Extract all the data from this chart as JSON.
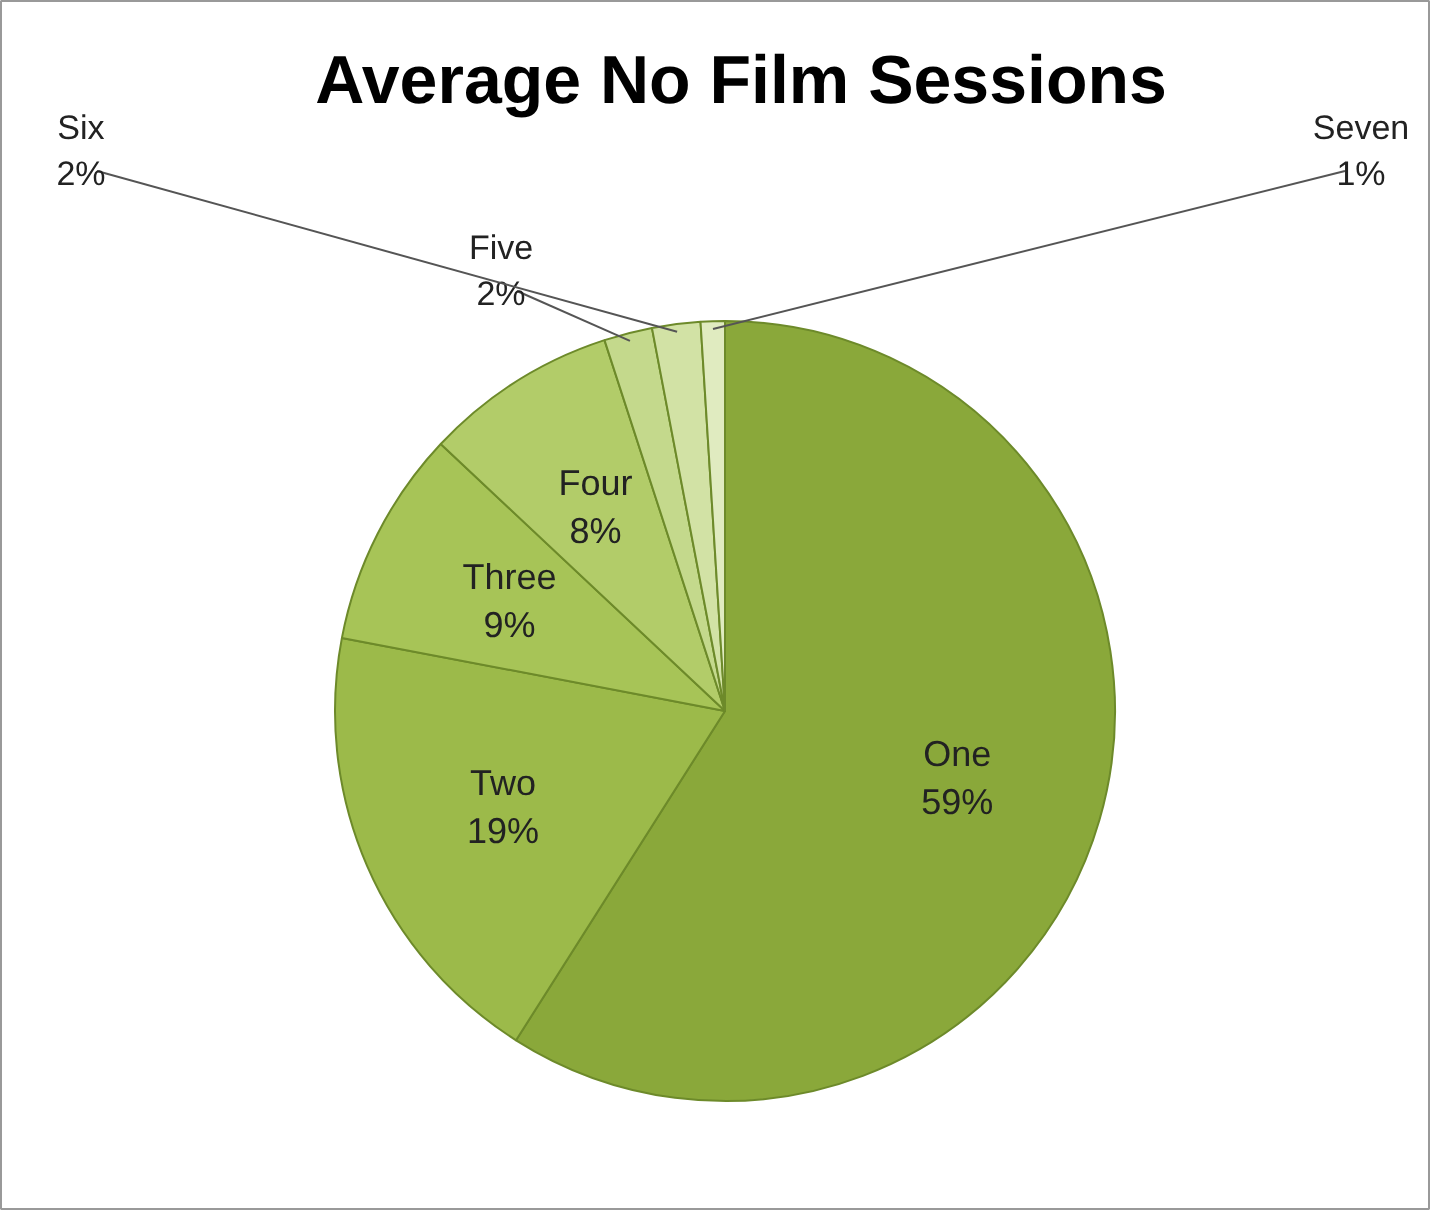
{
  "chart_data": {
    "type": "pie",
    "title": "Average No Film Sessions",
    "categories": [
      "One",
      "Two",
      "Three",
      "Four",
      "Five",
      "Six",
      "Seven"
    ],
    "values": [
      59,
      19,
      9,
      8,
      2,
      2,
      1
    ],
    "value_labels": [
      "59%",
      "19%",
      "9%",
      "8%",
      "2%",
      "2%",
      "1%"
    ],
    "colors": [
      "#8aa83a",
      "#9cba4a",
      "#a7c457",
      "#b2cc69",
      "#c4d98c",
      "#d2e2a5",
      "#e0ebc0"
    ]
  }
}
